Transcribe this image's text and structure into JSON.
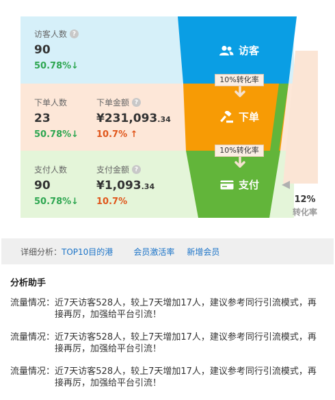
{
  "funnel": {
    "visitor": {
      "label": "访客人数",
      "value": "90",
      "rate": "50.78%↓",
      "stage": "访客",
      "stage_icon": "users-icon",
      "color": "#0a9ee4"
    },
    "order": {
      "count_label": "下单人数",
      "count_value": "23",
      "count_rate": "50.78%↓",
      "amount_label": "下单金额",
      "amount_main": "¥231,093",
      "amount_cents": ".34",
      "amount_rate": "10.7% ↑",
      "stage": "下单",
      "stage_icon": "gavel-icon",
      "color": "#f79b05"
    },
    "pay": {
      "count_label": "支付人数",
      "count_value": "90",
      "count_rate": "50.78%↓",
      "amount_label": "支付金额",
      "amount_main": "¥1,093",
      "amount_cents": ".34",
      "amount_rate": "10.7%",
      "stage": "支付",
      "stage_icon": "card-icon",
      "color": "#62b53a"
    },
    "conversion_1": "10%转化率",
    "conversion_2": "10%转化率",
    "total_conversion_value": "12%",
    "total_conversion_label": "转化率",
    "help_glyph": "?"
  },
  "detail": {
    "label": "详细分析：",
    "links": [
      "TOP10目的港",
      "会员激活率",
      "新增会员"
    ]
  },
  "assistant": {
    "title": "分析助手",
    "items": [
      {
        "label": "流量情况：",
        "text": "近7天访客528人，较上7天增加17人，建议参考同行引流模式，再接再厉，加强给平台引流！"
      },
      {
        "label": "流量情况：",
        "text": "近7天访客528人，较上7天增加17人，建议参考同行引流模式，再接再厉，加强给平台引流！"
      },
      {
        "label": "流量情况：",
        "text": "近7天访客528人，较上7天增加17人，建议参考同行引流模式，再接再厉，加强给平台引流！"
      }
    ]
  }
}
